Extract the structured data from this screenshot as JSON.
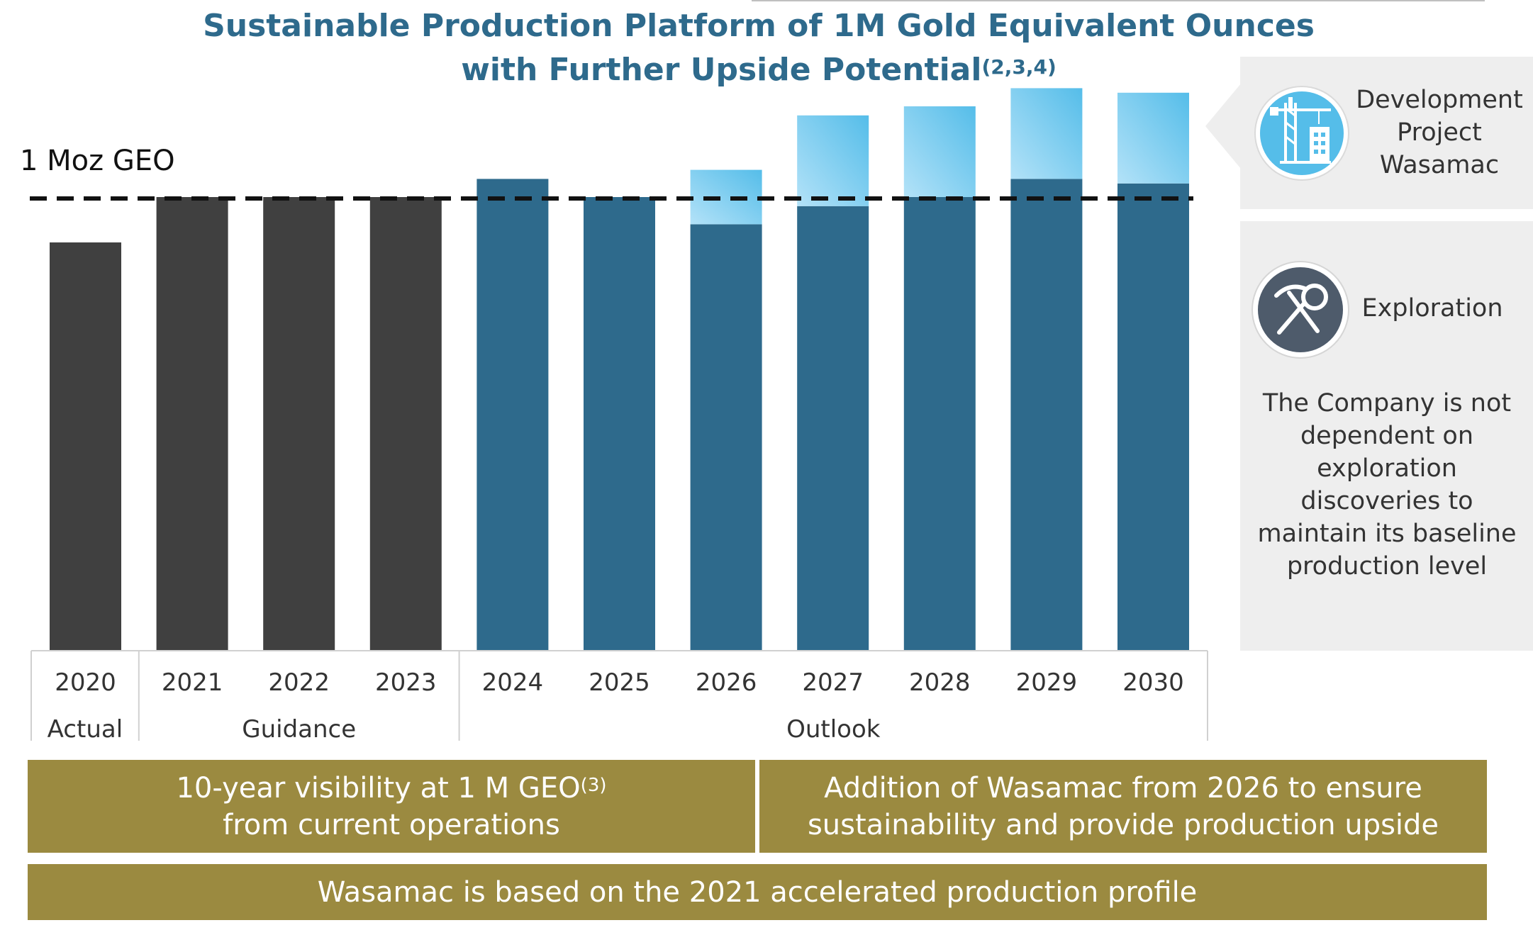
{
  "title": {
    "line1": "Sustainable Production Platform of 1M Gold Equivalent Ounces",
    "line2": "with Further Upside Potential",
    "superscript": "(2,3,4)"
  },
  "colors": {
    "actual_guidance": "#404040",
    "current_operations": "#2e6a8c",
    "wasamac_light": "#a7dcf6",
    "wasamac_dark": "#55bde9",
    "banner": "#9b8a40",
    "title": "#2e6a8c"
  },
  "chart_data": {
    "type": "bar",
    "categories": [
      "2020",
      "2021",
      "2022",
      "2023",
      "2024",
      "2025",
      "2026",
      "2027",
      "2028",
      "2029",
      "2030"
    ],
    "groups": [
      {
        "label": "Actual",
        "categories": [
          "2020"
        ]
      },
      {
        "label": "Guidance",
        "categories": [
          "2021",
          "2022",
          "2023"
        ]
      },
      {
        "label": "Outlook",
        "categories": [
          "2024",
          "2025",
          "2026",
          "2027",
          "2028",
          "2029",
          "2030"
        ]
      }
    ],
    "series": [
      {
        "values": [
          0.9,
          1.0,
          1.0,
          1.0,
          1.04,
          1.0,
          0.94,
          0.98,
          1.0,
          1.04,
          1.03
        ]
      },
      {
        "name": "Development Project Wasamac",
        "values": [
          0,
          0,
          0,
          0,
          0,
          0,
          0.12,
          0.2,
          0.2,
          0.2,
          0.2
        ]
      }
    ],
    "reference_line": {
      "label": "1 Moz GEO",
      "value": 1.0,
      "style": "dashed"
    },
    "ylim": [
      0,
      1.25
    ],
    "grid": false,
    "legend": "right"
  },
  "panel": {
    "development": {
      "icon": "crane-building-icon",
      "label_lines": [
        "Development",
        "Project",
        "Wasamac"
      ]
    },
    "exploration": {
      "icon": "pickaxe-icon",
      "label": "Exploration",
      "note_lines": [
        "The Company is not",
        "dependent on",
        "exploration",
        "discoveries to",
        "maintain its baseline",
        "production level"
      ]
    }
  },
  "banners": {
    "left_line1": "10-year visibility at 1 M GEO",
    "left_sup": "(3)",
    "left_line2": "from current operations",
    "right_line1": "Addition of Wasamac from 2026 to ensure",
    "right_line2": "sustainability and provide production upside",
    "bottom": "Wasamac is based on the 2021 accelerated production profile"
  }
}
